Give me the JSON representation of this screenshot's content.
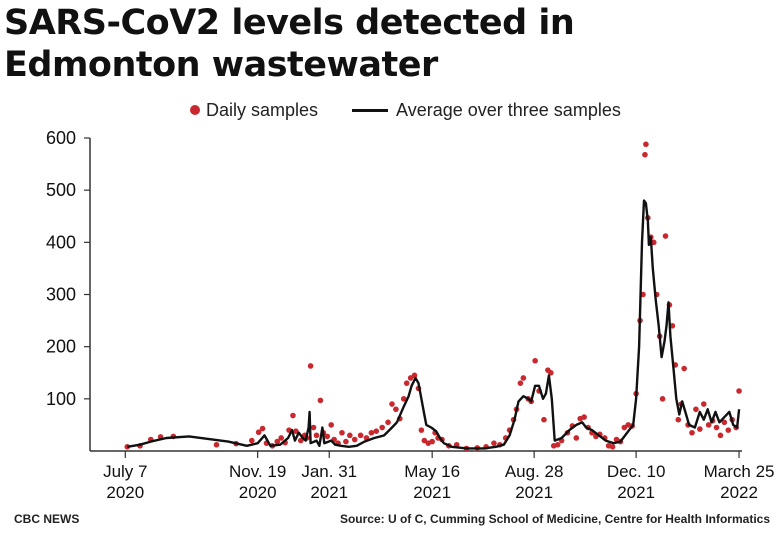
{
  "title": "SARS-CoV2 levels detected in Edmonton wastewater",
  "footer": {
    "left": "CBC NEWS",
    "right": "Source: U of C, Cumming School of Medicine, Centre for Health Informatics"
  },
  "colors": {
    "points": "#c8282e",
    "line": "#111111",
    "axis": "#333333"
  },
  "chart_data": {
    "type": "line",
    "title": "SARS-CoV2 levels detected in Edmonton wastewater",
    "xlabel": "",
    "ylabel": "",
    "ylim": [
      0,
      600
    ],
    "xlim": [
      "2020-06-01",
      "2022-03-28"
    ],
    "y_ticks": [
      "600",
      "500",
      "400",
      "300",
      "200",
      "100"
    ],
    "y_tick_values": [
      600,
      500,
      400,
      300,
      200,
      100
    ],
    "x_ticks": [
      {
        "date": "2020-07-07",
        "line1": "July 7",
        "line2": "2020"
      },
      {
        "date": "2020-11-19",
        "line1": "Nov. 19",
        "line2": "2020"
      },
      {
        "date": "2021-01-31",
        "line1": "Jan. 31",
        "line2": "2021"
      },
      {
        "date": "2021-05-16",
        "line1": "May 16",
        "line2": "2021"
      },
      {
        "date": "2021-08-28",
        "line1": "Aug. 28",
        "line2": "2021"
      },
      {
        "date": "2021-12-10",
        "line1": "Dec. 10",
        "line2": "2021"
      },
      {
        "date": "2022-03-25",
        "line1": "March 25",
        "line2": "2022"
      }
    ],
    "grid": false,
    "legend_position": "top",
    "series": [
      {
        "name": "Daily samples",
        "kind": "scatter",
        "points": [
          [
            "2020-07-09",
            8
          ],
          [
            "2020-07-22",
            10
          ],
          [
            "2020-08-02",
            22
          ],
          [
            "2020-08-12",
            27
          ],
          [
            "2020-08-25",
            28
          ],
          [
            "2020-10-08",
            12
          ],
          [
            "2020-10-28",
            14
          ],
          [
            "2020-11-13",
            20
          ],
          [
            "2020-11-20",
            36
          ],
          [
            "2020-11-24",
            43
          ],
          [
            "2020-11-28",
            15
          ],
          [
            "2020-12-04",
            10
          ],
          [
            "2020-12-09",
            18
          ],
          [
            "2020-12-13",
            25
          ],
          [
            "2020-12-17",
            16
          ],
          [
            "2020-12-21",
            40
          ],
          [
            "2020-12-25",
            68
          ],
          [
            "2020-12-28",
            38
          ],
          [
            "2021-01-02",
            20
          ],
          [
            "2021-01-06",
            30
          ],
          [
            "2021-01-08",
            25
          ],
          [
            "2021-01-12",
            163
          ],
          [
            "2021-01-15",
            45
          ],
          [
            "2021-01-18",
            30
          ],
          [
            "2021-01-22",
            97
          ],
          [
            "2021-01-25",
            35
          ],
          [
            "2021-01-29",
            28
          ],
          [
            "2021-02-02",
            50
          ],
          [
            "2021-02-05",
            22
          ],
          [
            "2021-02-09",
            15
          ],
          [
            "2021-02-13",
            35
          ],
          [
            "2021-02-17",
            18
          ],
          [
            "2021-02-21",
            30
          ],
          [
            "2021-02-26",
            22
          ],
          [
            "2021-03-04",
            30
          ],
          [
            "2021-03-10",
            25
          ],
          [
            "2021-03-15",
            35
          ],
          [
            "2021-03-20",
            38
          ],
          [
            "2021-03-26",
            45
          ],
          [
            "2021-04-01",
            55
          ],
          [
            "2021-04-05",
            90
          ],
          [
            "2021-04-09",
            80
          ],
          [
            "2021-04-13",
            62
          ],
          [
            "2021-04-17",
            100
          ],
          [
            "2021-04-20",
            130
          ],
          [
            "2021-04-24",
            140
          ],
          [
            "2021-04-28",
            145
          ],
          [
            "2021-05-02",
            120
          ],
          [
            "2021-05-05",
            40
          ],
          [
            "2021-05-08",
            20
          ],
          [
            "2021-05-12",
            15
          ],
          [
            "2021-05-16",
            18
          ],
          [
            "2021-05-19",
            35
          ],
          [
            "2021-05-22",
            25
          ],
          [
            "2021-05-26",
            22
          ],
          [
            "2021-06-02",
            10
          ],
          [
            "2021-06-10",
            12
          ],
          [
            "2021-06-20",
            5
          ],
          [
            "2021-07-01",
            6
          ],
          [
            "2021-07-10",
            8
          ],
          [
            "2021-07-18",
            15
          ],
          [
            "2021-07-24",
            12
          ],
          [
            "2021-07-30",
            25
          ],
          [
            "2021-08-03",
            40
          ],
          [
            "2021-08-07",
            60
          ],
          [
            "2021-08-10",
            80
          ],
          [
            "2021-08-14",
            130
          ],
          [
            "2021-08-17",
            140
          ],
          [
            "2021-08-22",
            100
          ],
          [
            "2021-08-25",
            95
          ],
          [
            "2021-08-29",
            173
          ],
          [
            "2021-09-02",
            115
          ],
          [
            "2021-09-07",
            60
          ],
          [
            "2021-09-11",
            155
          ],
          [
            "2021-09-14",
            150
          ],
          [
            "2021-09-17",
            10
          ],
          [
            "2021-09-21",
            12
          ],
          [
            "2021-09-25",
            20
          ],
          [
            "2021-10-01",
            35
          ],
          [
            "2021-10-06",
            48
          ],
          [
            "2021-10-10",
            25
          ],
          [
            "2021-10-14",
            62
          ],
          [
            "2021-10-18",
            65
          ],
          [
            "2021-10-22",
            45
          ],
          [
            "2021-10-26",
            35
          ],
          [
            "2021-10-30",
            28
          ],
          [
            "2021-11-03",
            32
          ],
          [
            "2021-11-08",
            25
          ],
          [
            "2021-11-12",
            10
          ],
          [
            "2021-11-16",
            8
          ],
          [
            "2021-11-20",
            22
          ],
          [
            "2021-11-24",
            18
          ],
          [
            "2021-11-28",
            45
          ],
          [
            "2021-12-02",
            50
          ],
          [
            "2021-12-06",
            48
          ],
          [
            "2021-12-10",
            110
          ],
          [
            "2021-12-14",
            250
          ],
          [
            "2021-12-17",
            300
          ],
          [
            "2021-12-19",
            568
          ],
          [
            "2021-12-20",
            588
          ],
          [
            "2021-12-22",
            447
          ],
          [
            "2021-12-25",
            410
          ],
          [
            "2021-12-28",
            400
          ],
          [
            "2021-12-31",
            300
          ],
          [
            "2022-01-03",
            220
          ],
          [
            "2022-01-06",
            100
          ],
          [
            "2022-01-09",
            412
          ],
          [
            "2022-01-13",
            280
          ],
          [
            "2022-01-16",
            240
          ],
          [
            "2022-01-19",
            165
          ],
          [
            "2022-01-22",
            60
          ],
          [
            "2022-01-25",
            90
          ],
          [
            "2022-01-28",
            158
          ],
          [
            "2022-02-01",
            50
          ],
          [
            "2022-02-05",
            35
          ],
          [
            "2022-02-09",
            80
          ],
          [
            "2022-02-13",
            42
          ],
          [
            "2022-02-17",
            90
          ],
          [
            "2022-02-22",
            50
          ],
          [
            "2022-02-26",
            58
          ],
          [
            "2022-03-02",
            45
          ],
          [
            "2022-03-06",
            30
          ],
          [
            "2022-03-10",
            55
          ],
          [
            "2022-03-14",
            40
          ],
          [
            "2022-03-18",
            60
          ],
          [
            "2022-03-22",
            45
          ],
          [
            "2022-03-25",
            115
          ]
        ]
      },
      {
        "name": "Average over three samples",
        "kind": "line",
        "points": [
          [
            "2020-07-09",
            8
          ],
          [
            "2020-07-22",
            12
          ],
          [
            "2020-08-02",
            18
          ],
          [
            "2020-08-18",
            25
          ],
          [
            "2020-09-10",
            28
          ],
          [
            "2020-10-20",
            18
          ],
          [
            "2020-11-08",
            10
          ],
          [
            "2020-11-19",
            15
          ],
          [
            "2020-11-26",
            30
          ],
          [
            "2020-12-02",
            10
          ],
          [
            "2020-12-12",
            12
          ],
          [
            "2020-12-20",
            25
          ],
          [
            "2020-12-24",
            40
          ],
          [
            "2020-12-27",
            20
          ],
          [
            "2020-12-31",
            35
          ],
          [
            "2021-01-04",
            25
          ],
          [
            "2021-01-07",
            20
          ],
          [
            "2021-01-10",
            45
          ],
          [
            "2021-01-11",
            75
          ],
          [
            "2021-01-12",
            15
          ],
          [
            "2021-01-18",
            20
          ],
          [
            "2021-01-21",
            10
          ],
          [
            "2021-01-24",
            45
          ],
          [
            "2021-01-26",
            15
          ],
          [
            "2021-02-02",
            20
          ],
          [
            "2021-02-06",
            12
          ],
          [
            "2021-02-12",
            10
          ],
          [
            "2021-02-20",
            8
          ],
          [
            "2021-02-28",
            10
          ],
          [
            "2021-03-08",
            18
          ],
          [
            "2021-03-18",
            25
          ],
          [
            "2021-03-28",
            30
          ],
          [
            "2021-04-05",
            45
          ],
          [
            "2021-04-10",
            55
          ],
          [
            "2021-04-17",
            85
          ],
          [
            "2021-04-22",
            105
          ],
          [
            "2021-04-25",
            125
          ],
          [
            "2021-04-29",
            140
          ],
          [
            "2021-05-02",
            130
          ],
          [
            "2021-05-05",
            100
          ],
          [
            "2021-05-08",
            70
          ],
          [
            "2021-05-10",
            50
          ],
          [
            "2021-05-15",
            45
          ],
          [
            "2021-05-20",
            38
          ],
          [
            "2021-05-24",
            25
          ],
          [
            "2021-05-28",
            15
          ],
          [
            "2021-06-05",
            8
          ],
          [
            "2021-06-20",
            5
          ],
          [
            "2021-07-08",
            5
          ],
          [
            "2021-07-20",
            8
          ],
          [
            "2021-07-28",
            12
          ],
          [
            "2021-08-03",
            30
          ],
          [
            "2021-08-08",
            60
          ],
          [
            "2021-08-12",
            95
          ],
          [
            "2021-08-17",
            105
          ],
          [
            "2021-08-22",
            100
          ],
          [
            "2021-08-25",
            95
          ],
          [
            "2021-08-29",
            125
          ],
          [
            "2021-09-02",
            125
          ],
          [
            "2021-09-06",
            100
          ],
          [
            "2021-09-09",
            110
          ],
          [
            "2021-09-12",
            145
          ],
          [
            "2021-09-15",
            100
          ],
          [
            "2021-09-18",
            20
          ],
          [
            "2021-09-25",
            25
          ],
          [
            "2021-10-03",
            40
          ],
          [
            "2021-10-10",
            50
          ],
          [
            "2021-10-16",
            55
          ],
          [
            "2021-10-20",
            45
          ],
          [
            "2021-10-26",
            40
          ],
          [
            "2021-11-02",
            30
          ],
          [
            "2021-11-09",
            20
          ],
          [
            "2021-11-17",
            15
          ],
          [
            "2021-11-24",
            18
          ],
          [
            "2021-12-02",
            38
          ],
          [
            "2021-12-07",
            50
          ],
          [
            "2021-12-10",
            100
          ],
          [
            "2021-12-13",
            200
          ],
          [
            "2021-12-16",
            400
          ],
          [
            "2021-12-18",
            480
          ],
          [
            "2021-12-20",
            475
          ],
          [
            "2021-12-22",
            440
          ],
          [
            "2021-12-23",
            395
          ],
          [
            "2021-12-25",
            410
          ],
          [
            "2021-12-27",
            350
          ],
          [
            "2021-12-30",
            290
          ],
          [
            "2022-01-02",
            240
          ],
          [
            "2022-01-05",
            180
          ],
          [
            "2022-01-08",
            210
          ],
          [
            "2022-01-10",
            240
          ],
          [
            "2022-01-12",
            285
          ],
          [
            "2022-01-14",
            220
          ],
          [
            "2022-01-17",
            160
          ],
          [
            "2022-01-20",
            100
          ],
          [
            "2022-01-23",
            70
          ],
          [
            "2022-01-26",
            95
          ],
          [
            "2022-01-30",
            70
          ],
          [
            "2022-02-02",
            50
          ],
          [
            "2022-02-08",
            45
          ],
          [
            "2022-02-13",
            75
          ],
          [
            "2022-02-17",
            60
          ],
          [
            "2022-02-21",
            80
          ],
          [
            "2022-02-25",
            55
          ],
          [
            "2022-03-01",
            75
          ],
          [
            "2022-03-05",
            55
          ],
          [
            "2022-03-10",
            65
          ],
          [
            "2022-03-15",
            75
          ],
          [
            "2022-03-19",
            50
          ],
          [
            "2022-03-23",
            45
          ],
          [
            "2022-03-25",
            80
          ]
        ]
      }
    ]
  }
}
